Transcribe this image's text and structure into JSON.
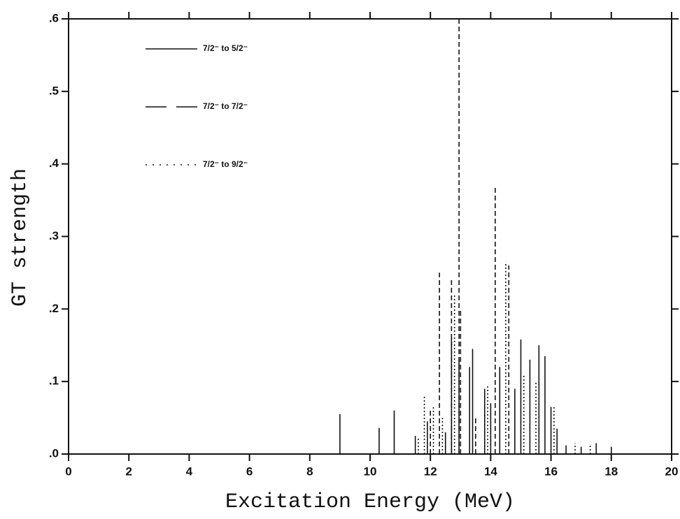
{
  "chart_data": {
    "type": "stem",
    "xlabel": "Excitation Energy (MeV)",
    "ylabel": "GT strength",
    "xlim": [
      0,
      20
    ],
    "ylim": [
      0,
      0.6
    ],
    "xticks": [
      0,
      2,
      4,
      6,
      8,
      10,
      12,
      14,
      16,
      18,
      20
    ],
    "yticks": [
      {
        "value": 0,
        "label": ".0"
      },
      {
        "value": 0.1,
        "label": ".1"
      },
      {
        "value": 0.2,
        "label": ".2"
      },
      {
        "value": 0.3,
        "label": ".3"
      },
      {
        "value": 0.4,
        "label": ".4"
      },
      {
        "value": 0.5,
        "label": ".5"
      },
      {
        "value": 0.6,
        "label": ".6"
      }
    ],
    "series": [
      {
        "name": "7/2⁻ to 5/2⁻",
        "style": "solid",
        "color": "#111111",
        "x": [
          9.0,
          10.3,
          10.8,
          11.5,
          11.9,
          12.5,
          12.7,
          12.95,
          13.3,
          13.4,
          13.8,
          14.0,
          14.3,
          14.8,
          15.0,
          15.3,
          15.6,
          15.8,
          16.0,
          16.2,
          16.5,
          17.0,
          17.5,
          18.0
        ],
        "values": [
          0.055,
          0.036,
          0.06,
          0.025,
          0.045,
          0.03,
          0.16,
          0.13,
          0.12,
          0.145,
          0.09,
          0.07,
          0.12,
          0.09,
          0.158,
          0.13,
          0.15,
          0.135,
          0.065,
          0.035,
          0.012,
          0.01,
          0.015,
          0.01
        ]
      },
      {
        "name": "7/2⁻ to 7/2⁻",
        "style": "dashed",
        "color": "#111111",
        "x": [
          12.0,
          12.3,
          12.7,
          12.95,
          13.0,
          13.5,
          14.15,
          14.6
        ],
        "values": [
          0.06,
          0.25,
          0.24,
          0.6,
          0.2,
          0.05,
          0.37,
          0.26
        ]
      },
      {
        "name": "7/2⁻ to 9/2⁻",
        "style": "dotted",
        "color": "#111111",
        "x": [
          11.6,
          11.8,
          12.1,
          12.4,
          12.8,
          13.9,
          14.5,
          15.1,
          15.5,
          16.1,
          16.8,
          17.3
        ],
        "values": [
          0.022,
          0.08,
          0.065,
          0.05,
          0.22,
          0.095,
          0.265,
          0.11,
          0.1,
          0.065,
          0.015,
          0.012
        ]
      }
    ]
  }
}
